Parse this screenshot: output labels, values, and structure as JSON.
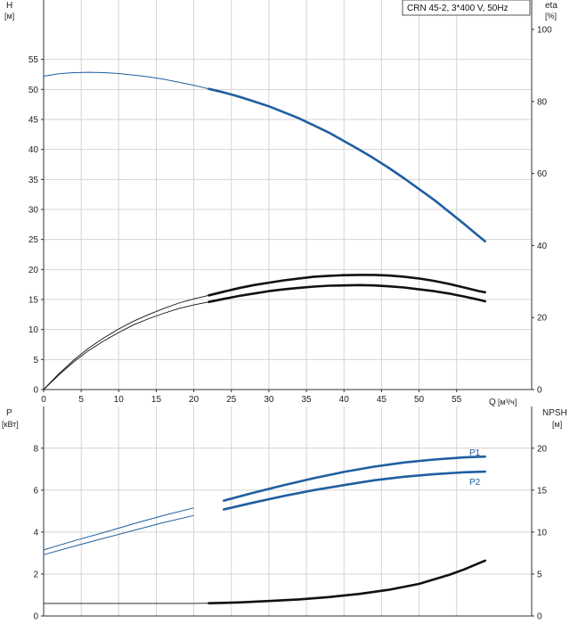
{
  "chart_data": [
    {
      "type": "line",
      "title": "CRN 45-2, 3*400 V, 50Hz",
      "xlabel": "Q",
      "xunit": "[м³/ч]",
      "xlim": [
        0,
        65
      ],
      "xticks": [
        0,
        5,
        10,
        15,
        20,
        25,
        30,
        35,
        40,
        45,
        50,
        55
      ],
      "ylabel": "H",
      "yunit": "[м]",
      "ylim": [
        0,
        60
      ],
      "yticks": [
        0,
        5,
        10,
        15,
        20,
        25,
        30,
        35,
        40,
        45,
        50,
        55
      ],
      "y2label": "eta",
      "y2unit": "[%]",
      "y2lim": [
        0,
        100
      ],
      "y2ticks": [
        0,
        20,
        40,
        60,
        80,
        100
      ],
      "grid": true,
      "series": [
        {
          "key": "head",
          "axis": "left",
          "color": "#1f5fa0",
          "x": [
            0,
            2,
            4,
            6,
            8,
            10,
            12,
            14,
            16,
            18,
            20,
            22,
            24,
            26,
            28,
            30,
            32,
            34,
            36,
            38,
            40,
            42,
            44,
            46,
            48,
            50,
            52,
            54,
            56,
            58,
            58.8
          ],
          "values": [
            52.2,
            52.6,
            52.8,
            52.85,
            52.8,
            52.65,
            52.4,
            52.1,
            51.7,
            51.2,
            50.7,
            50.1,
            49.5,
            48.8,
            48.0,
            47.2,
            46.2,
            45.2,
            44.0,
            42.8,
            41.4,
            40.0,
            38.5,
            36.9,
            35.2,
            33.4,
            31.6,
            29.6,
            27.6,
            25.5,
            24.7
          ]
        },
        {
          "key": "eta-1",
          "axis": "left",
          "color": "#111111",
          "x": [
            0,
            2,
            4,
            6,
            8,
            10,
            12,
            14,
            16,
            18,
            20,
            22,
            24,
            26,
            28,
            30,
            32,
            34,
            36,
            38,
            40,
            42,
            44,
            46,
            48,
            50,
            52,
            54,
            56,
            58,
            58.8
          ],
          "values": [
            0,
            2.6,
            4.9,
            6.9,
            8.6,
            10.1,
            11.4,
            12.5,
            13.5,
            14.4,
            15.1,
            15.7,
            16.3,
            16.9,
            17.4,
            17.8,
            18.2,
            18.5,
            18.8,
            18.95,
            19.05,
            19.1,
            19.1,
            19.0,
            18.8,
            18.5,
            18.1,
            17.6,
            17.0,
            16.4,
            16.2
          ]
        },
        {
          "key": "eta-2",
          "axis": "left",
          "color": "#111111",
          "x": [
            0,
            2,
            4,
            6,
            8,
            10,
            12,
            14,
            16,
            18,
            20,
            22,
            24,
            26,
            28,
            30,
            32,
            34,
            36,
            38,
            40,
            42,
            44,
            46,
            48,
            50,
            52,
            54,
            56,
            58,
            58.8
          ],
          "values": [
            0,
            2.4,
            4.6,
            6.5,
            8.1,
            9.5,
            10.8,
            11.8,
            12.7,
            13.5,
            14.1,
            14.6,
            15.1,
            15.6,
            16.0,
            16.4,
            16.7,
            16.95,
            17.15,
            17.3,
            17.35,
            17.4,
            17.35,
            17.2,
            17.0,
            16.7,
            16.4,
            16.0,
            15.5,
            14.95,
            14.7
          ]
        }
      ]
    },
    {
      "type": "line",
      "xlim": [
        0,
        65
      ],
      "ylabel": "P",
      "yunit": "[кВт]",
      "ylim": [
        0,
        8.5
      ],
      "yticks": [
        0,
        2,
        4,
        6,
        8
      ],
      "y2label": "NPSH",
      "y2unit": "[м]",
      "y2lim": [
        0,
        21.25
      ],
      "y2ticks": [
        0,
        5,
        10,
        15,
        20
      ],
      "grid": true,
      "series": [
        {
          "name": "P1",
          "axis": "left",
          "color": "#1f5fa0",
          "x": [
            0,
            4,
            8,
            12,
            16,
            20,
            24,
            28,
            32,
            36,
            40,
            44,
            48,
            52,
            56,
            58.8
          ],
          "values": [
            3.15,
            3.58,
            3.98,
            4.4,
            4.8,
            5.15,
            5.5,
            5.88,
            6.24,
            6.57,
            6.87,
            7.12,
            7.32,
            7.46,
            7.56,
            7.6
          ]
        },
        {
          "name": "P2",
          "axis": "left",
          "color": "#1f5fa0",
          "x": [
            0,
            4,
            8,
            12,
            16,
            20,
            24,
            28,
            32,
            36,
            40,
            44,
            48,
            52,
            56,
            58.8
          ],
          "values": [
            2.92,
            3.32,
            3.7,
            4.08,
            4.46,
            4.79,
            5.08,
            5.41,
            5.72,
            6.0,
            6.24,
            6.47,
            6.64,
            6.76,
            6.85,
            6.88
          ]
        },
        {
          "key": "npsh",
          "axis": "right",
          "color": "#111111",
          "x": [
            0,
            10,
            20,
            22,
            26,
            30,
            34,
            38,
            42,
            46,
            50,
            54,
            56,
            58,
            58.8
          ],
          "values": [
            1.5,
            1.5,
            1.5,
            1.52,
            1.62,
            1.78,
            1.98,
            2.25,
            2.62,
            3.12,
            3.82,
            4.9,
            5.55,
            6.3,
            6.6
          ]
        }
      ]
    }
  ]
}
